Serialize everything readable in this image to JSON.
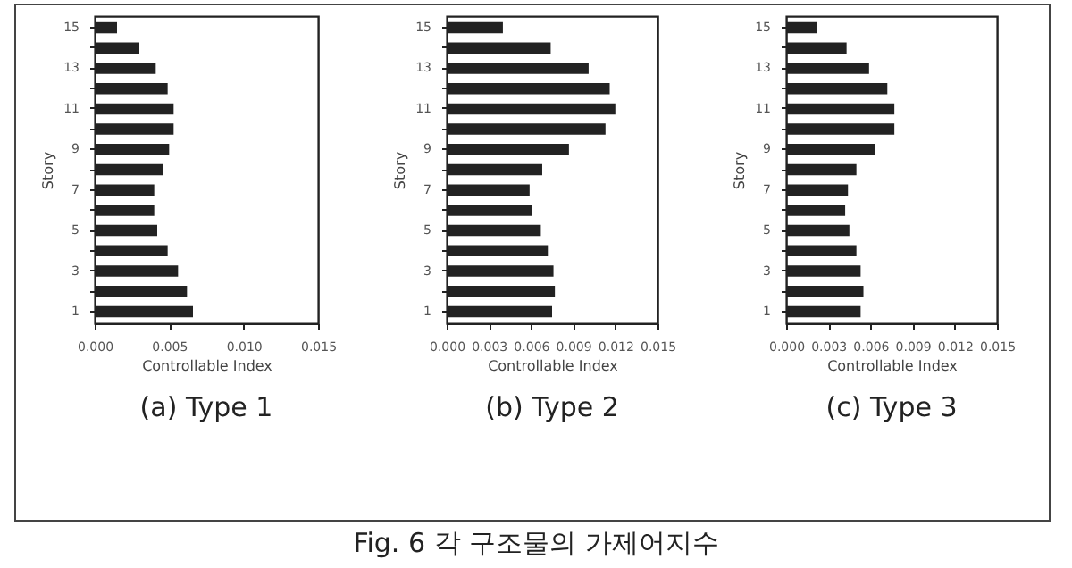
{
  "chart_data": [
    {
      "type": "bar",
      "orientation": "horizontal",
      "xlabel": "Controllable Index",
      "ylabel": "Story",
      "categories": [
        "15",
        null,
        "13",
        null,
        "11",
        null,
        "9",
        null,
        "7",
        null,
        "5",
        null,
        "3",
        null,
        "1"
      ],
      "series": [
        {
          "color": "#222222",
          "values": [
            0.0015,
            0.003,
            0.0041,
            0.0049,
            0.0053,
            0.0053,
            0.005,
            0.0046,
            0.004,
            0.004,
            0.0042,
            0.0049,
            0.0056,
            0.0062,
            0.0066
          ]
        }
      ],
      "xlim": [
        0,
        0.015
      ],
      "xticks": [
        {
          "value": 0,
          "label": "0.000"
        },
        {
          "value": 0.005,
          "label": "0.005"
        },
        {
          "value": 0.01,
          "label": "0.010"
        },
        {
          "value": 0.015,
          "label": "0.015"
        }
      ],
      "annotations": [
        "(a) Type 1",
        "Fig. 6 각 구조물의 가제어지수"
      ]
    },
    {
      "type": "bar",
      "orientation": "horizontal",
      "xlabel": "Controllable Index",
      "ylabel": "Story",
      "categories": [
        "15",
        null,
        "13",
        null,
        "11",
        null,
        "9",
        null,
        "7",
        null,
        "5",
        null,
        "3",
        null,
        "1"
      ],
      "series": [
        {
          "color": "#222222",
          "values": [
            0.004,
            0.0074,
            0.0101,
            0.0116,
            0.012,
            0.0113,
            0.0087,
            0.0068,
            0.0059,
            0.0061,
            0.0067,
            0.0072,
            0.0076,
            0.0077,
            0.0075
          ]
        }
      ],
      "xlim": [
        0,
        0.015
      ],
      "xticks": [
        {
          "value": 0,
          "label": "0.000"
        },
        {
          "value": 0.003,
          "label": "0.003"
        },
        {
          "value": 0.006,
          "label": "0.006"
        },
        {
          "value": 0.009,
          "label": "0.009"
        },
        {
          "value": 0.012,
          "label": "0.012"
        },
        {
          "value": 0.015,
          "label": "0.015"
        }
      ],
      "annotations": [
        "(b) Type 2"
      ]
    },
    {
      "type": "bar",
      "orientation": "horizontal",
      "xlabel": "Controllable Index",
      "ylabel": "Story",
      "categories": [
        "15",
        null,
        "13",
        null,
        "11",
        null,
        "9",
        null,
        "7",
        null,
        "5",
        null,
        "3",
        null,
        "1"
      ],
      "series": [
        {
          "color": "#222222",
          "values": [
            0.0022,
            0.0043,
            0.0059,
            0.0072,
            0.0077,
            0.0077,
            0.0063,
            0.005,
            0.0044,
            0.0042,
            0.0045,
            0.005,
            0.0053,
            0.0055,
            0.0053
          ]
        }
      ],
      "xlim": [
        0,
        0.015
      ],
      "xticks": [
        {
          "value": 0,
          "label": "0.000"
        },
        {
          "value": 0.003,
          "label": "0.003"
        },
        {
          "value": 0.006,
          "label": "0.006"
        },
        {
          "value": 0.009,
          "label": "0.009"
        },
        {
          "value": 0.012,
          "label": "0.012"
        },
        {
          "value": 0.015,
          "label": "0.015"
        }
      ],
      "annotations": [
        "(c) Type 3"
      ]
    }
  ]
}
